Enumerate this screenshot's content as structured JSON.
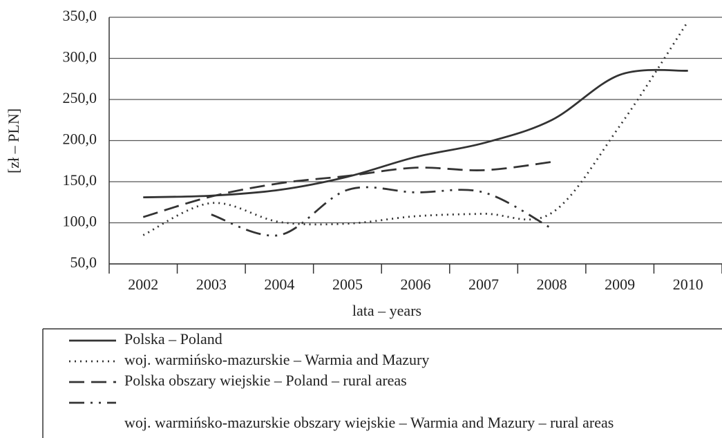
{
  "chart_data": {
    "type": "line",
    "y_label": "[zł – PLN]",
    "x_label": "lata – years",
    "categories": [
      "2002",
      "2003",
      "2004",
      "2005",
      "2006",
      "2007",
      "2008",
      "2009",
      "2010"
    ],
    "series": [
      {
        "name": "Polska – Poland",
        "color": "#333333",
        "dash": "solid",
        "values": [
          131,
          133,
          140,
          156,
          180,
          197,
          225,
          280,
          285
        ]
      },
      {
        "name": "woj. warmińsko-mazurskie – Warmia and Mazury",
        "color": "#333333",
        "dash": "dotted",
        "values": [
          85,
          124,
          101,
          99,
          108,
          111,
          112,
          218,
          345
        ]
      },
      {
        "name": "Polska obszary wiejskie – Poland – rural areas",
        "color": "#333333",
        "dash": "dashed",
        "values": [
          107,
          132,
          148,
          157,
          167,
          164,
          174,
          null,
          null
        ]
      },
      {
        "name": "woj. warmińsko-mazurskie obszary wiejskie – Warmia and Mazury – rural areas",
        "color": "#333333",
        "dash": "dashdot",
        "values": [
          null,
          110,
          85,
          140,
          137,
          137,
          93,
          null,
          null
        ]
      }
    ],
    "ylim": [
      50,
      350
    ],
    "yticks": [
      {
        "value": 50,
        "label": "50,0"
      },
      {
        "value": 100,
        "label": "100,0"
      },
      {
        "value": 150,
        "label": "150,0"
      },
      {
        "value": 200,
        "label": "200,0"
      },
      {
        "value": 250,
        "label": "250,0"
      },
      {
        "value": 300,
        "label": "300,0"
      },
      {
        "value": 350,
        "label": "350,0"
      }
    ],
    "grid": true
  }
}
